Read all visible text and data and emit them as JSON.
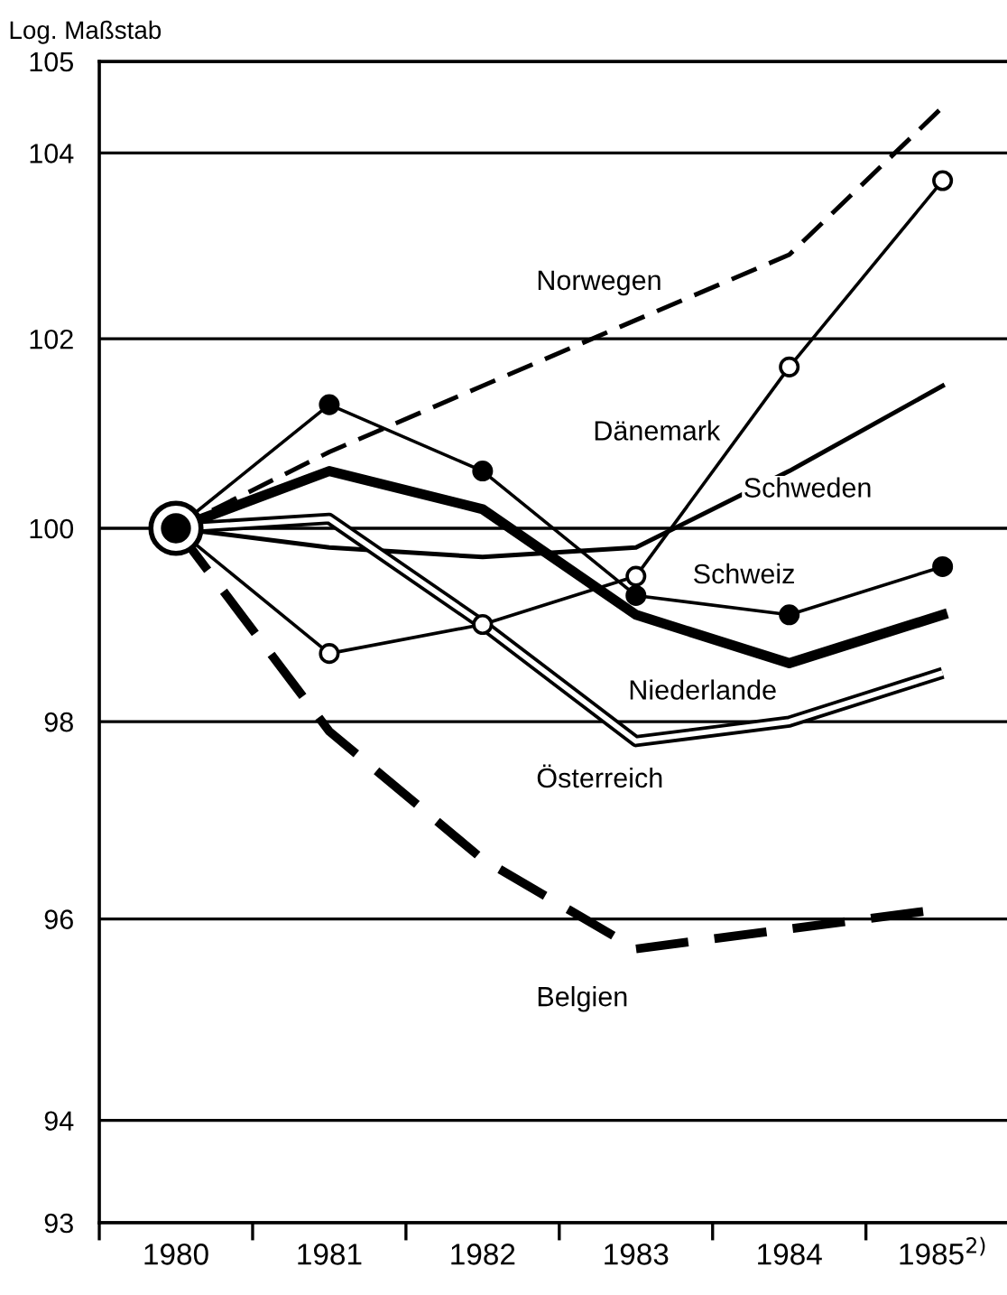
{
  "chart_data": {
    "type": "line",
    "ylabel": "Log. Maßstab",
    "categories": [
      "1980",
      "1981",
      "1982",
      "1983",
      "1984",
      "1985$^{2)}$"
    ],
    "log": "y",
    "ylim": [
      93,
      105
    ],
    "yticks": [
      93,
      94,
      96,
      98,
      100,
      102,
      104,
      105
    ],
    "grid": "y",
    "legend": false,
    "series": [
      {
        "name": "Norwegen",
        "color": "#000000",
        "line_style": "dashed",
        "marker": "none",
        "values": [
          100,
          100.8,
          101.5,
          102.2,
          102.9,
          104.5
        ]
      },
      {
        "name": "Dänemark",
        "color": "#000000",
        "line_style": "solid",
        "marker": "circle",
        "values": [
          100,
          98.7,
          99.0,
          99.5,
          101.7,
          103.7
        ]
      },
      {
        "name": "Schweden",
        "color": "#000000",
        "line_style": "solid",
        "marker": "none",
        "values": [
          100,
          99.8,
          99.7,
          99.8,
          100.6,
          101.5
        ]
      },
      {
        "name": "Schweiz",
        "color": "#000000",
        "line_style": "solid",
        "marker": "circle",
        "values": [
          100,
          101.3,
          100.6,
          99.3,
          99.1,
          99.6
        ]
      },
      {
        "name": "Niederlande",
        "color": "#000000",
        "line_style": "solid",
        "marker": "none",
        "values": [
          100,
          100.6,
          100.2,
          99.1,
          98.6,
          99.1
        ]
      },
      {
        "name": "Österreich",
        "color": "#000000",
        "line_style": "solid",
        "marker": "none",
        "values": [
          100,
          100.1,
          99.0,
          97.8,
          98.0,
          98.5
        ]
      },
      {
        "name": "Belgien",
        "color": "#000000",
        "line_style": "dashed",
        "marker": "none",
        "values": [
          100,
          97.9,
          96.6,
          95.7,
          95.9,
          96.1
        ]
      }
    ]
  }
}
